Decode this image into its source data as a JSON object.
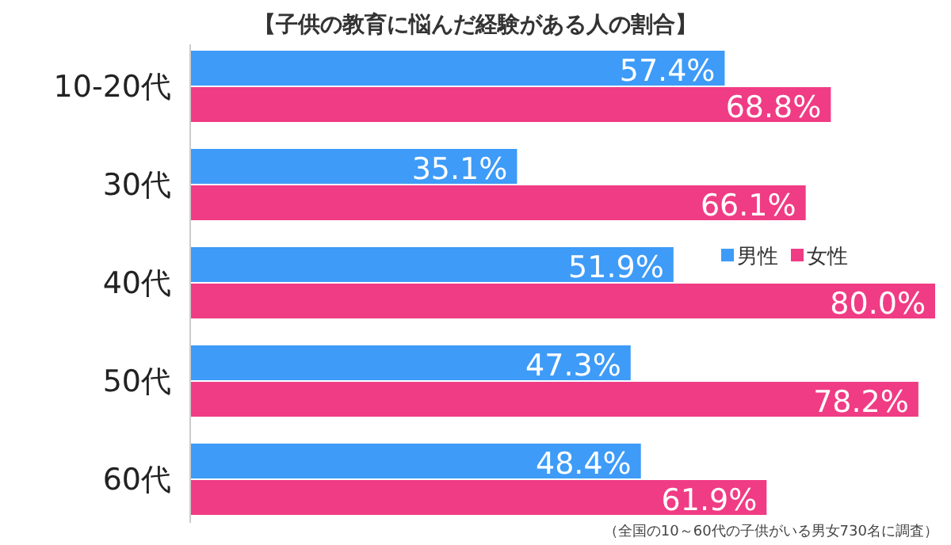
{
  "chart_data": {
    "type": "bar",
    "orientation": "horizontal",
    "title": "【子供の教育に悩んだ経験がある人の割合】",
    "categories": [
      "10-20代",
      "30代",
      "40代",
      "50代",
      "60代"
    ],
    "series": [
      {
        "name": "男性",
        "color": "#3e9bf8",
        "values": [
          57.4,
          35.1,
          51.9,
          47.3,
          48.4
        ],
        "value_labels": [
          "57.4%",
          "35.1%",
          "51.9%",
          "47.3%",
          "48.4%"
        ]
      },
      {
        "name": "女性",
        "color": "#f03c84",
        "values": [
          68.8,
          66.1,
          80.0,
          78.2,
          61.9
        ],
        "value_labels": [
          "68.8%",
          "66.1%",
          "80.0%",
          "78.2%",
          "61.9%"
        ]
      }
    ],
    "legend": "right",
    "annotations": [
      "（全国の10～60代の子供がいる男女730名に調査）"
    ]
  }
}
